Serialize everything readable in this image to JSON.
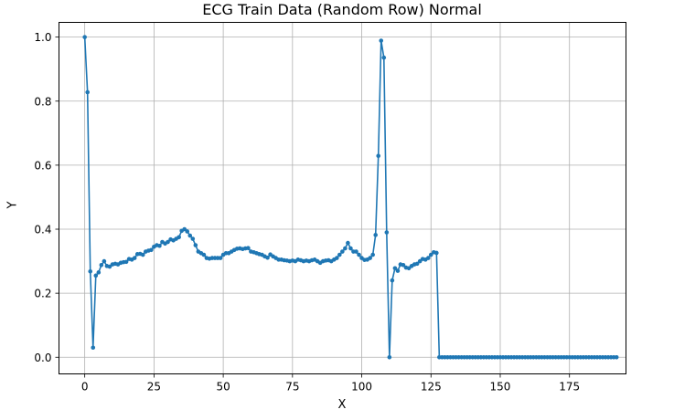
{
  "chart_data": {
    "type": "line",
    "title": "ECG Train Data (Random Row) Normal",
    "xlabel": "X",
    "ylabel": "Y",
    "xlim": [
      -9.3,
      195.4
    ],
    "ylim": [
      -0.052,
      1.046
    ],
    "xticks": [
      0,
      25,
      50,
      75,
      100,
      125,
      150,
      175
    ],
    "yticks": [
      0.0,
      0.2,
      0.4,
      0.6,
      0.8,
      1.0
    ],
    "xtick_labels": [
      "0",
      "25",
      "50",
      "75",
      "100",
      "125",
      "150",
      "175"
    ],
    "ytick_labels": [
      "0.0",
      "0.2",
      "0.4",
      "0.6",
      "0.8",
      "1.0"
    ],
    "grid": true,
    "legend": null,
    "series": [
      {
        "name": "ECG",
        "color": "#1f77b4",
        "marker": "o",
        "x_start": 0,
        "values": [
          1.0,
          0.828,
          0.268,
          0.03,
          0.255,
          0.265,
          0.288,
          0.3,
          0.285,
          0.283,
          0.29,
          0.292,
          0.29,
          0.295,
          0.297,
          0.298,
          0.307,
          0.305,
          0.31,
          0.322,
          0.323,
          0.32,
          0.33,
          0.333,
          0.335,
          0.345,
          0.35,
          0.348,
          0.36,
          0.355,
          0.36,
          0.368,
          0.365,
          0.37,
          0.375,
          0.395,
          0.4,
          0.393,
          0.38,
          0.37,
          0.35,
          0.33,
          0.325,
          0.32,
          0.31,
          0.308,
          0.31,
          0.31,
          0.31,
          0.31,
          0.32,
          0.325,
          0.325,
          0.33,
          0.335,
          0.339,
          0.34,
          0.338,
          0.34,
          0.341,
          0.33,
          0.328,
          0.325,
          0.322,
          0.32,
          0.315,
          0.311,
          0.321,
          0.315,
          0.31,
          0.305,
          0.305,
          0.303,
          0.302,
          0.3,
          0.302,
          0.3,
          0.305,
          0.303,
          0.3,
          0.302,
          0.3,
          0.303,
          0.305,
          0.3,
          0.295,
          0.3,
          0.302,
          0.303,
          0.3,
          0.305,
          0.31,
          0.32,
          0.33,
          0.34,
          0.357,
          0.34,
          0.33,
          0.33,
          0.32,
          0.31,
          0.304,
          0.305,
          0.31,
          0.32,
          0.382,
          0.629,
          0.989,
          0.936,
          0.39,
          0.0,
          0.24,
          0.278,
          0.27,
          0.29,
          0.288,
          0.28,
          0.278,
          0.285,
          0.29,
          0.292,
          0.3,
          0.307,
          0.305,
          0.31,
          0.32,
          0.328,
          0.326,
          0.0,
          0.0,
          0.0,
          0.0,
          0.0,
          0.0,
          0.0,
          0.0,
          0.0,
          0.0,
          0.0,
          0.0,
          0.0,
          0.0,
          0.0,
          0.0,
          0.0,
          0.0,
          0.0,
          0.0,
          0.0,
          0.0,
          0.0,
          0.0,
          0.0,
          0.0,
          0.0,
          0.0,
          0.0,
          0.0,
          0.0,
          0.0,
          0.0,
          0.0,
          0.0,
          0.0,
          0.0,
          0.0,
          0.0,
          0.0,
          0.0,
          0.0,
          0.0,
          0.0,
          0.0,
          0.0,
          0.0,
          0.0,
          0.0,
          0.0,
          0.0,
          0.0,
          0.0,
          0.0,
          0.0,
          0.0,
          0.0,
          0.0,
          0.0,
          0.0,
          0.0,
          0.0,
          0.0,
          0.0,
          0.0
        ]
      }
    ]
  }
}
